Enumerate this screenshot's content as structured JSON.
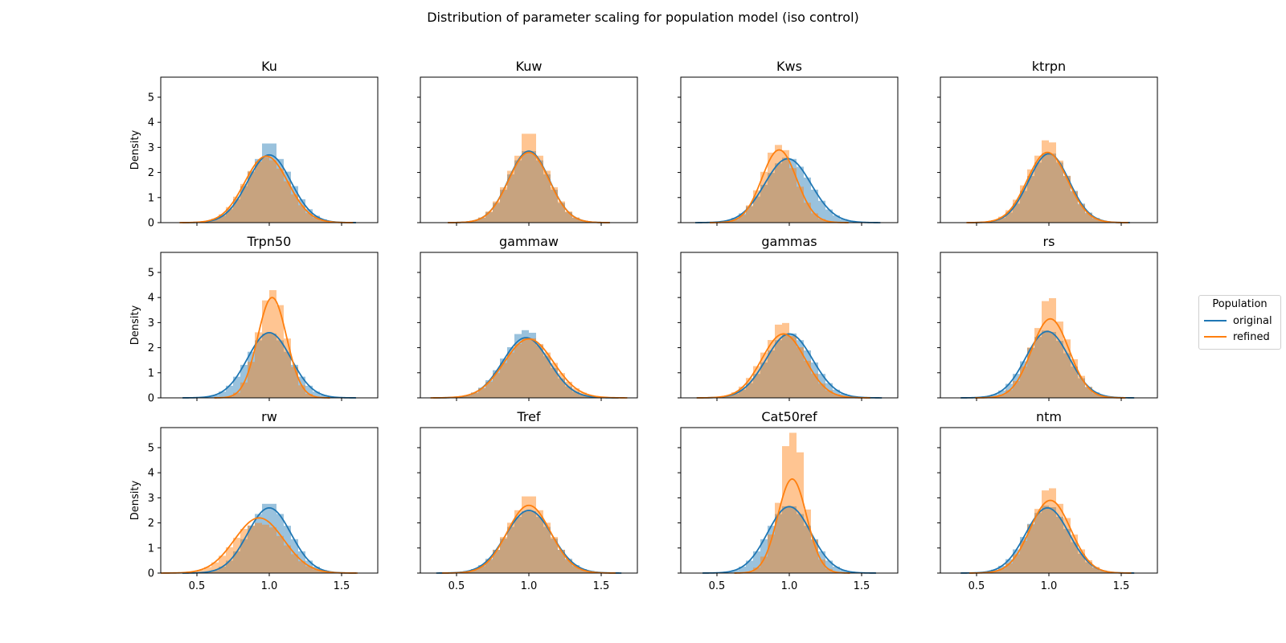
{
  "figure_title": "Distribution of parameter scaling for population model (iso control)",
  "legend": {
    "title": "Population",
    "placement": "center-right",
    "entries": [
      {
        "label": "original",
        "color": "#1f77b4"
      },
      {
        "label": "refined",
        "color": "#ff7f0e"
      }
    ]
  },
  "chart_data": {
    "type": "histogram-kde-grid",
    "title": "Distribution of parameter scaling for population model (iso control)",
    "ylabel": "Density",
    "ylim": [
      0,
      5.8
    ],
    "yticks": [
      0,
      1,
      2,
      3,
      4,
      5
    ],
    "xticks": [
      0.5,
      1.0,
      1.5
    ],
    "xtick_labels": [
      "0.5",
      "1.0",
      "1.5"
    ],
    "grid": false,
    "series_names": [
      "original",
      "refined"
    ],
    "series_colors": [
      "#1f77b4",
      "#ff7f0e"
    ],
    "panels": [
      {
        "title": "Ku",
        "xlim": [
          0.25,
          1.75
        ],
        "original": {
          "mean": 1.0,
          "sd": 0.15,
          "peak": 2.7
        },
        "refined": {
          "mean": 0.98,
          "sd": 0.15,
          "peak": 2.65
        },
        "hist_peaks": {
          "original": 3.2,
          "refined": 2.6
        }
      },
      {
        "title": "Kuw",
        "xlim": [
          0.25,
          1.75
        ],
        "original": {
          "mean": 1.0,
          "sd": 0.14,
          "peak": 2.85
        },
        "refined": {
          "mean": 1.0,
          "sd": 0.14,
          "peak": 2.8
        },
        "hist_peaks": {
          "original": 2.9,
          "refined": 3.6
        }
      },
      {
        "title": "Kws",
        "xlim": [
          0.25,
          1.75
        ],
        "original": {
          "mean": 0.99,
          "sd": 0.16,
          "peak": 2.55
        },
        "refined": {
          "mean": 0.93,
          "sd": 0.12,
          "peak": 2.9
        },
        "hist_peaks": {
          "original": 2.6,
          "refined": 3.1
        }
      },
      {
        "title": "ktrpn",
        "xlim": [
          0.25,
          1.75
        ],
        "original": {
          "mean": 1.0,
          "sd": 0.14,
          "peak": 2.75
        },
        "refined": {
          "mean": 0.99,
          "sd": 0.14,
          "peak": 2.8
        },
        "hist_peaks": {
          "original": 2.8,
          "refined": 3.3
        }
      },
      {
        "title": "Trpn50",
        "xlim": [
          0.25,
          1.75
        ],
        "original": {
          "mean": 1.0,
          "sd": 0.15,
          "peak": 2.6
        },
        "refined": {
          "mean": 1.02,
          "sd": 0.1,
          "peak": 4.0
        },
        "hist_peaks": {
          "original": 2.6,
          "refined": 4.3
        }
      },
      {
        "title": "gammaw",
        "xlim": [
          0.25,
          1.75
        ],
        "original": {
          "mean": 0.98,
          "sd": 0.16,
          "peak": 2.4
        },
        "refined": {
          "mean": 1.0,
          "sd": 0.17,
          "peak": 2.35
        },
        "hist_peaks": {
          "original": 2.7,
          "refined": 2.4
        }
      },
      {
        "title": "gammas",
        "xlim": [
          0.25,
          1.75
        ],
        "original": {
          "mean": 1.0,
          "sd": 0.16,
          "peak": 2.55
        },
        "refined": {
          "mean": 0.96,
          "sd": 0.15,
          "peak": 2.55
        },
        "hist_peaks": {
          "original": 2.6,
          "refined": 3.0
        }
      },
      {
        "title": "rs",
        "xlim": [
          0.25,
          1.75
        ],
        "original": {
          "mean": 0.99,
          "sd": 0.15,
          "peak": 2.65
        },
        "refined": {
          "mean": 1.01,
          "sd": 0.13,
          "peak": 3.15
        },
        "hist_peaks": {
          "original": 2.7,
          "refined": 4.0
        }
      },
      {
        "title": "rw",
        "xlim": [
          0.25,
          1.75
        ],
        "original": {
          "mean": 1.0,
          "sd": 0.15,
          "peak": 2.6
        },
        "refined": {
          "mean": 0.93,
          "sd": 0.17,
          "peak": 2.2
        },
        "hist_peaks": {
          "original": 2.8,
          "refined": 2.0
        }
      },
      {
        "title": "Tref",
        "xlim": [
          0.25,
          1.75
        ],
        "original": {
          "mean": 1.0,
          "sd": 0.16,
          "peak": 2.5
        },
        "refined": {
          "mean": 1.0,
          "sd": 0.15,
          "peak": 2.7
        },
        "hist_peaks": {
          "original": 2.5,
          "refined": 3.1
        }
      },
      {
        "title": "Cat50ref",
        "xlim": [
          0.25,
          1.75
        ],
        "original": {
          "mean": 1.0,
          "sd": 0.15,
          "peak": 2.65
        },
        "refined": {
          "mean": 1.02,
          "sd": 0.1,
          "peak": 3.75
        },
        "hist_peaks": {
          "original": 2.7,
          "refined": 5.6
        }
      },
      {
        "title": "ntm",
        "xlim": [
          0.25,
          1.75
        ],
        "original": {
          "mean": 0.99,
          "sd": 0.15,
          "peak": 2.6
        },
        "refined": {
          "mean": 1.01,
          "sd": 0.14,
          "peak": 2.9
        },
        "hist_peaks": {
          "original": 2.7,
          "refined": 3.4
        }
      }
    ]
  }
}
